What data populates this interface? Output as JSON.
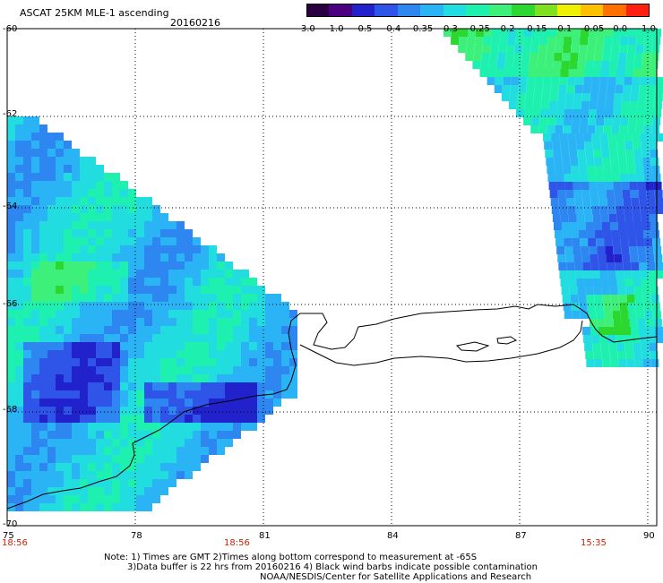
{
  "header": {
    "title": "ASCAT 25KM MLE-1 ascending",
    "date": "20160216"
  },
  "colorbar": {
    "ticks": [
      "-3.0",
      "-1.0",
      "-0.5",
      "-0.4",
      "-0.35",
      "-0.3",
      "-0.25",
      "-0.2",
      "-0.15",
      "-0.1",
      "-0.05",
      "0.0",
      "1.0"
    ],
    "colors": [
      "#2a0040",
      "#4b0082",
      "#2222cc",
      "#2e55e8",
      "#2e86f0",
      "#2ab4f5",
      "#22dde0",
      "#1ef0b0",
      "#3cf07a",
      "#2cd830",
      "#80e020",
      "#eef000",
      "#ffc000",
      "#ff7000",
      "#ff2010"
    ]
  },
  "axes": {
    "lat_labels": [
      "-60",
      "-62",
      "-64",
      "-66",
      "-68",
      "-70"
    ],
    "lon_labels": [
      "75",
      "78",
      "81",
      "84",
      "87",
      "90"
    ]
  },
  "pass_times": [
    "18:56",
    "18:56",
    "15:35"
  ],
  "footer": {
    "line1": "Note: 1) Times are GMT 2)Times along bottom correspond to measurement at -65S",
    "line2": "3)Data buffer is 22 hrs from 20160216 4) Black wind barbs indicate possible contamination",
    "line3": "NOAA/NESDIS/Center for Satellite Applications and Research"
  }
}
